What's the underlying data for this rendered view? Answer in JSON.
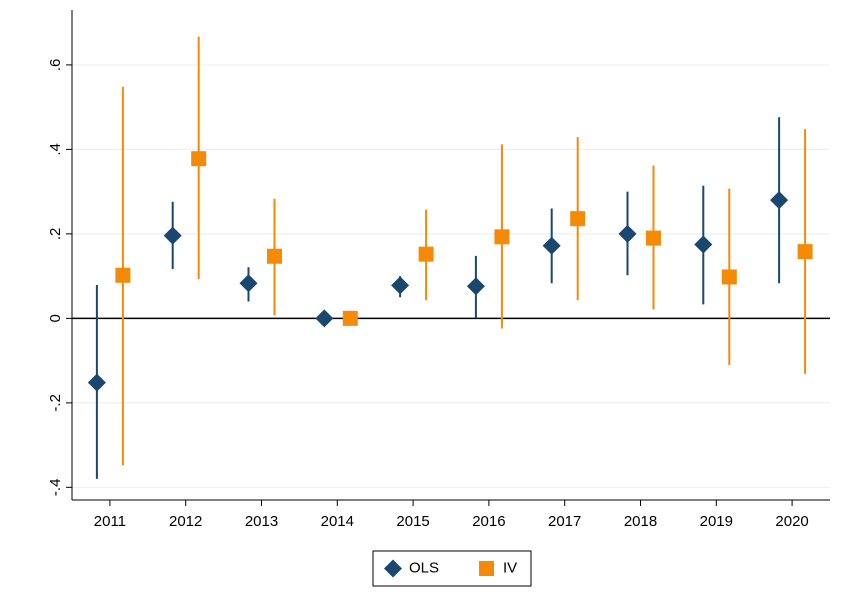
{
  "chart_data": {
    "type": "coefplot",
    "categories": [
      "2011",
      "2012",
      "2013",
      "2014",
      "2015",
      "2016",
      "2017",
      "2018",
      "2019",
      "2020"
    ],
    "series": [
      {
        "name": "OLS",
        "color": "#1a476f",
        "marker": "diamond",
        "values": [
          -0.152,
          0.196,
          0.083,
          0,
          0.078,
          0.076,
          0.172,
          0.2,
          0.175,
          0.28
        ],
        "lower": [
          -0.38,
          0.117,
          0.04,
          0,
          0.05,
          0.0,
          0.083,
          0.102,
          0.033,
          0.083
        ],
        "upper": [
          0.079,
          0.276,
          0.121,
          0,
          0.1,
          0.148,
          0.26,
          0.3,
          0.314,
          0.476
        ]
      },
      {
        "name": "IV",
        "color": "#f58a07",
        "marker": "square",
        "values": [
          0.102,
          0.378,
          0.147,
          0,
          0.152,
          0.193,
          0.236,
          0.19,
          0.098,
          0.158
        ],
        "lower": [
          -0.348,
          0.093,
          0.007,
          0,
          0.043,
          -0.024,
          0.043,
          0.021,
          -0.11,
          -0.131
        ],
        "upper": [
          0.548,
          0.667,
          0.283,
          0,
          0.257,
          0.412,
          0.429,
          0.362,
          0.307,
          0.448
        ]
      }
    ],
    "ylim": [
      -0.43,
      0.73
    ],
    "yticks": [
      {
        "value": -0.4,
        "label": "-.4"
      },
      {
        "value": -0.2,
        "label": "-.2"
      },
      0,
      {
        "value": 0.2,
        "label": ".2"
      },
      {
        "value": 0.4,
        "label": ".4"
      },
      {
        "value": 0.6,
        "label": ".6"
      }
    ],
    "refline": 0,
    "grid": true,
    "legend": "bottom"
  }
}
